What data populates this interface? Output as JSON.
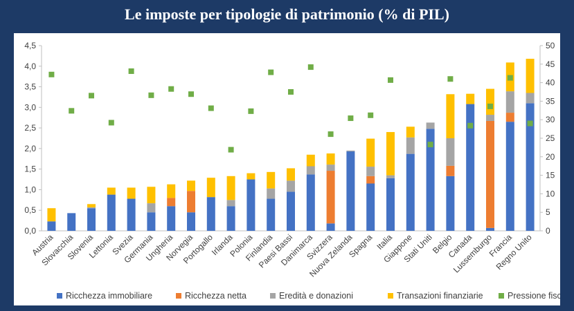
{
  "title": "Le imposte per tipologie di patrimonio (% di PIL)",
  "chart_data": {
    "type": "bar",
    "stacked": true,
    "categories": [
      "Austria",
      "Slovacchia",
      "Slovenia",
      "Lettonia",
      "Svezia",
      "Germania",
      "Ungheria",
      "Norvegia",
      "Portogallo",
      "Irlanda",
      "Polonia",
      "Finlandia",
      "Paesi Bassi",
      "Danimarca",
      "Svizzera",
      "Nuova Zelanda",
      "Spagna",
      "Italia",
      "Giappone",
      "Stati Uniti",
      "Belgio",
      "Canada",
      "Lussemburgo",
      "Francia",
      "Regno Unito"
    ],
    "series": [
      {
        "name": "Ricchezza immobiliare",
        "color": "#4472c4",
        "axis": "left",
        "values": [
          0.23,
          0.43,
          0.55,
          0.88,
          0.78,
          0.45,
          0.6,
          0.45,
          0.82,
          0.6,
          1.25,
          0.78,
          0.95,
          1.37,
          0.18,
          1.93,
          1.15,
          1.28,
          1.87,
          2.48,
          1.33,
          3.08,
          0.07,
          2.65,
          3.1
        ]
      },
      {
        "name": "Ricchezza netta",
        "color": "#ed7d31",
        "axis": "left",
        "values": [
          0,
          0,
          0,
          0,
          0,
          0,
          0.2,
          0.52,
          0,
          0,
          0,
          0,
          0,
          0,
          1.28,
          0,
          0.18,
          0,
          0,
          0,
          0.25,
          0,
          2.6,
          0.22,
          0
        ]
      },
      {
        "name": "Eredità e donazioni",
        "color": "#a5a5a5",
        "axis": "left",
        "values": [
          0,
          0,
          0.02,
          0,
          0,
          0.22,
          0,
          0,
          0,
          0.15,
          0,
          0.25,
          0.27,
          0.2,
          0.15,
          0.02,
          0.23,
          0.07,
          0.4,
          0.15,
          0.67,
          0,
          0.15,
          0.52,
          0.25
        ]
      },
      {
        "name": "Transazioni finanziarie",
        "color": "#ffc000",
        "axis": "left",
        "values": [
          0.32,
          0,
          0.08,
          0.17,
          0.27,
          0.4,
          0.33,
          0.25,
          0.47,
          0.58,
          0.15,
          0.4,
          0.3,
          0.28,
          0.27,
          0,
          0.68,
          1.05,
          0.26,
          0,
          1.07,
          0.25,
          0.63,
          0.7,
          0.83
        ]
      },
      {
        "name": "Pressione fiscale",
        "color": "#70ad47",
        "axis": "right",
        "type": "scatter",
        "values": [
          42.2,
          32.4,
          36.5,
          29.2,
          43.1,
          36.6,
          38.3,
          36.9,
          33.1,
          21.9,
          32.3,
          42.8,
          37.5,
          44.2,
          26.1,
          30.4,
          31.2,
          40.7,
          null,
          23.3,
          41.0,
          28.4,
          33.6,
          41.3,
          29.0
        ]
      }
    ],
    "ylim": [
      0,
      4.5
    ],
    "yticks": [
      "0,0",
      "0,5",
      "1,0",
      "1,5",
      "2,0",
      "2,5",
      "3,0",
      "3,5",
      "4,0",
      "4,5"
    ],
    "y2lim": [
      0,
      50
    ],
    "y2ticks": [
      "0",
      "5",
      "10",
      "15",
      "20",
      "25",
      "30",
      "35",
      "40",
      "45",
      "50"
    ],
    "grid": false,
    "legend": "bottom"
  }
}
